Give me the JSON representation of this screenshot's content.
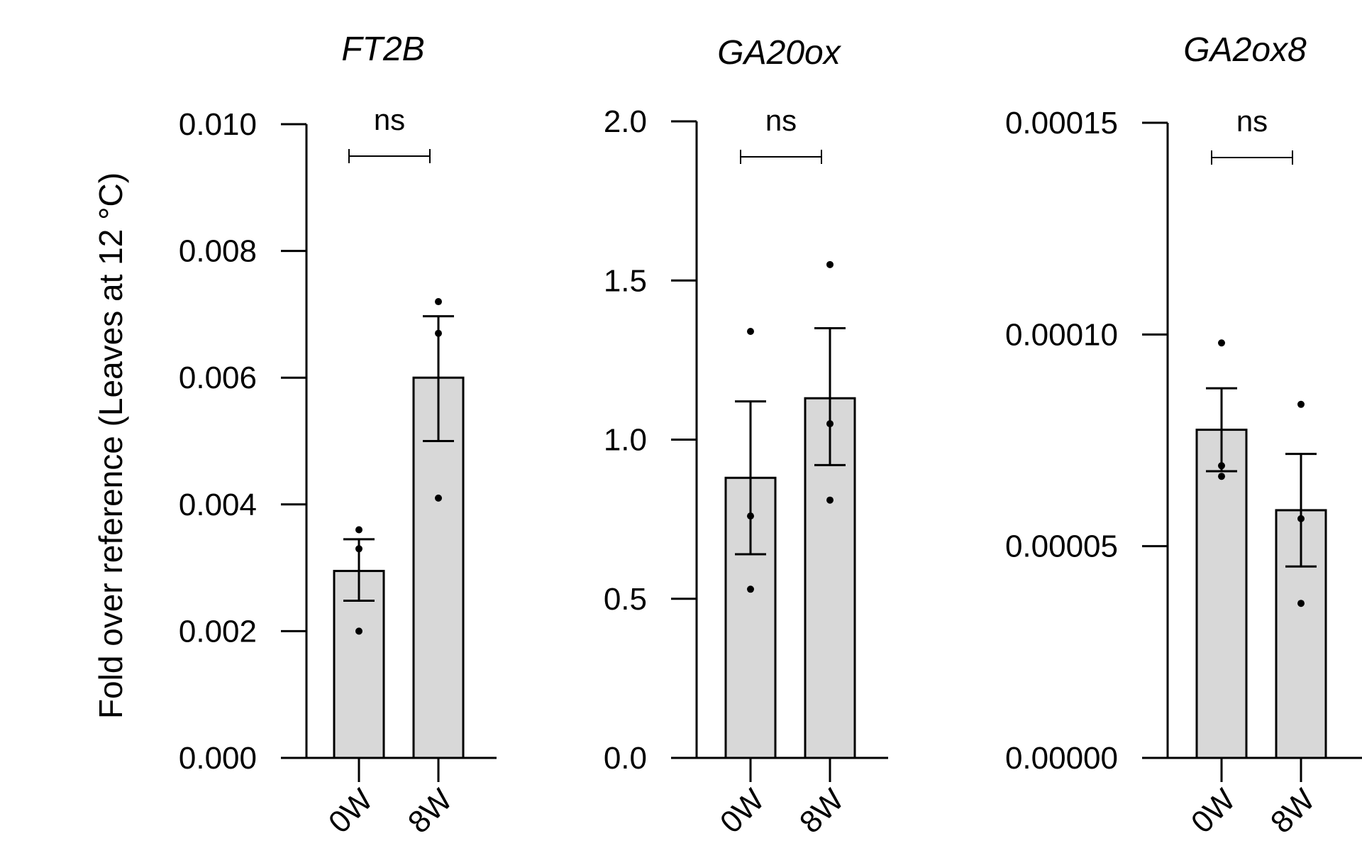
{
  "ylabel": "Fold over reference (Leaves at 12 °C)",
  "colors": {
    "bar": "#d8d8d8",
    "stroke": "#000000"
  },
  "chart_data": [
    {
      "type": "bar",
      "title": "FT2B",
      "categories": [
        "0W",
        "8W"
      ],
      "values": [
        0.00295,
        0.006
      ],
      "errors": [
        [
          0.00248,
          0.00345
        ],
        [
          0.005,
          0.00697
        ]
      ],
      "points": [
        [
          0.002,
          0.0033,
          0.0036
        ],
        [
          0.0041,
          0.0067,
          0.0072
        ]
      ],
      "ylim": [
        0,
        0.01
      ],
      "yticks": [
        "0.000",
        "0.002",
        "0.004",
        "0.006",
        "0.008",
        "0.010"
      ],
      "significance": "ns"
    },
    {
      "type": "bar",
      "title": "GA20ox",
      "categories": [
        "0W",
        "8W"
      ],
      "values": [
        0.88,
        1.13
      ],
      "errors": [
        [
          0.64,
          1.12
        ],
        [
          0.92,
          1.35
        ]
      ],
      "points": [
        [
          0.53,
          0.76,
          1.34
        ],
        [
          0.81,
          1.05,
          1.55
        ]
      ],
      "ylim": [
        0,
        2.0
      ],
      "yticks": [
        "0.0",
        "0.5",
        "1.0",
        "1.5",
        "2.0"
      ],
      "significance": "ns"
    },
    {
      "type": "bar",
      "title": "GA2ox8",
      "categories": [
        "0W",
        "8W"
      ],
      "values": [
        7.75e-05,
        5.85e-05
      ],
      "errors": [
        [
          6.77e-05,
          8.73e-05
        ],
        [
          4.52e-05,
          7.18e-05
        ]
      ],
      "points": [
        [
          6.65e-05,
          6.9e-05,
          9.8e-05
        ],
        [
          3.65e-05,
          5.65e-05,
          8.35e-05
        ]
      ],
      "ylim": [
        0,
        0.00015
      ],
      "yticks": [
        "0.00000",
        "0.00005",
        "0.00010",
        "0.00015"
      ],
      "significance": "ns"
    }
  ]
}
